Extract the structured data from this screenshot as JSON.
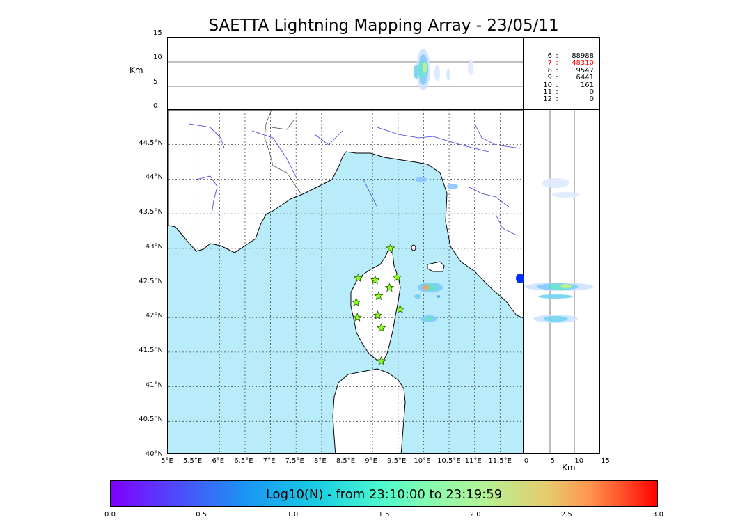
{
  "title": "SAETTA Lightning Mapping Array - 23/05/11",
  "map": {
    "lon_labels": [
      "5°E",
      "5.5°E",
      "6°E",
      "6.5°E",
      "7°E",
      "7.5°E",
      "8°E",
      "8.5°E",
      "9°E",
      "9.5°E",
      "10°E",
      "10.5°E",
      "11°E",
      "11.5°E"
    ],
    "lat_labels": [
      "44.5°N",
      "44°N",
      "43.5°N",
      "43°N",
      "42.5°N",
      "42°N",
      "41.5°N",
      "41°N",
      "40.5°N",
      "40°N"
    ],
    "lon_range": [
      5,
      12
    ],
    "lat_range": [
      40,
      45
    ],
    "sea_color": "#b8ecfb",
    "land_color": "#ffffff",
    "river_color": "#3b3bdf",
    "stations_icon": "star-icon",
    "station_color": "#8cff20"
  },
  "alt_lon": {
    "y_label": "Km",
    "y_ticks": [
      "15",
      "10",
      "5",
      "0"
    ],
    "range_km": [
      0,
      15
    ]
  },
  "alt_lat": {
    "x_label": "Km",
    "x_ticks": [
      "0",
      "5",
      "10",
      "15"
    ],
    "range_km": [
      0,
      15
    ]
  },
  "counts": {
    "rows": [
      {
        "level": "6",
        "value": "88988",
        "highlight": false
      },
      {
        "level": "7",
        "value": "48310",
        "highlight": true
      },
      {
        "level": "8",
        "value": "19547",
        "highlight": false
      },
      {
        "level": "9",
        "value": "6441",
        "highlight": false
      },
      {
        "level": "10",
        "value": "161",
        "highlight": false
      },
      {
        "level": "11",
        "value": "0",
        "highlight": false
      },
      {
        "level": "12",
        "value": "0",
        "highlight": false
      }
    ],
    "highlight_color": "#ff0000"
  },
  "colorbar": {
    "label": "Log10(N) - from 23:10:00 to 23:19:59",
    "ticks": [
      "0.0",
      "0.5",
      "1.0",
      "1.5",
      "2.0",
      "2.5",
      "3.0"
    ],
    "range": [
      0,
      3
    ]
  }
}
